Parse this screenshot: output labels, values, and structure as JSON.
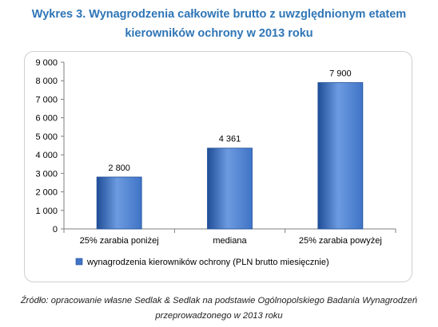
{
  "title_line1": "Wykres 3. Wynagrodzenia całkowite brutto z uwzględnionym etatem",
  "title_line2": "kierowników ochrony w 2013 roku",
  "source_line1": "Źródło: opracowanie własne Sedlak & Sedlak na podstawie Ogólnopolskiego Badania Wynagrodzeń",
  "source_line2": "przeprowadzonego w 2013 roku",
  "colors": {
    "bar": "#3f74c6",
    "bar_dark": "#1f4d97",
    "bar_light": "#6d9be0",
    "title": "#2e75b6"
  },
  "chart_data": {
    "type": "bar",
    "categories": [
      "25% zarabia poniżej",
      "mediana",
      "25% zarabia powyżej"
    ],
    "series": [
      {
        "name": "wynagrodzenia kierowników ochrony (PLN brutto miesięcznie)",
        "values": [
          2800,
          4361,
          7900
        ]
      }
    ],
    "value_labels": [
      "2 800",
      "4 361",
      "7 900"
    ],
    "ylim": [
      0,
      9000
    ],
    "yticks": [
      0,
      1000,
      2000,
      3000,
      4000,
      5000,
      6000,
      7000,
      8000,
      9000
    ],
    "ytick_labels": [
      "0",
      "1 000",
      "2 000",
      "3 000",
      "4 000",
      "5 000",
      "6 000",
      "7 000",
      "8 000",
      "9 000"
    ],
    "grid": false,
    "legend": "bottom"
  }
}
